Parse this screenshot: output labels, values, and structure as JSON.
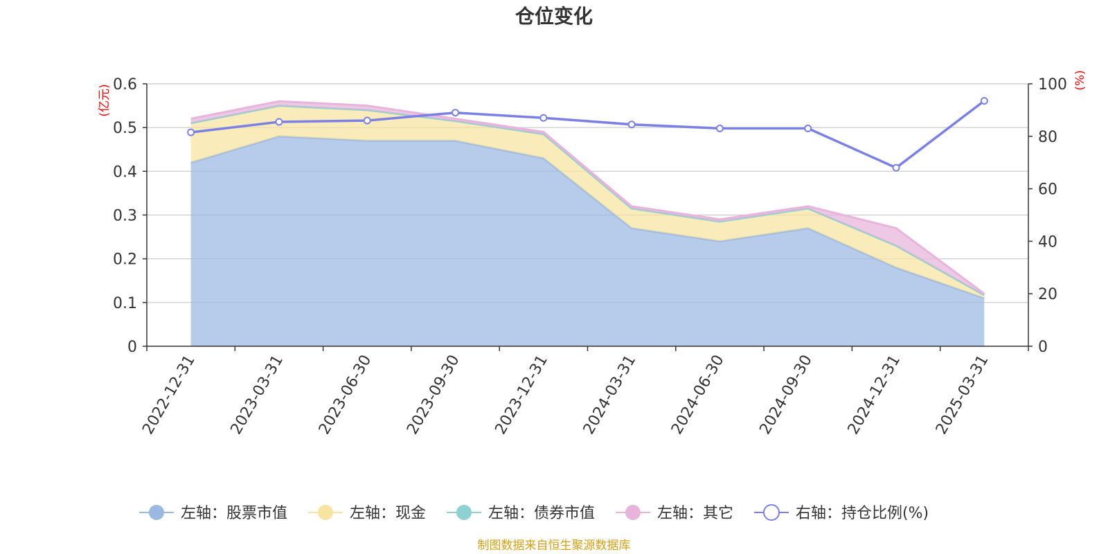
{
  "chart_data": {
    "type": "area",
    "title": "仓位变化",
    "left_unit": "(亿元)",
    "right_unit": "(%)",
    "categories": [
      "2022-12-31",
      "2023-03-31",
      "2023-06-30",
      "2023-09-30",
      "2023-12-31",
      "2024-03-31",
      "2024-06-30",
      "2024-09-30",
      "2024-12-31",
      "2025-03-31"
    ],
    "left_axis": {
      "min": 0,
      "max": 0.6,
      "ticks": [
        "0",
        "0.1",
        "0.2",
        "0.3",
        "0.4",
        "0.5",
        "0.6"
      ]
    },
    "right_axis": {
      "min": 0,
      "max": 100,
      "ticks": [
        "0",
        "20",
        "40",
        "60",
        "80",
        "100"
      ]
    },
    "grid": true,
    "stacked": true,
    "series": [
      {
        "name": "左轴：股票市值",
        "axis": "left",
        "color": "#9bb8e2",
        "values": [
          0.42,
          0.48,
          0.47,
          0.47,
          0.43,
          0.27,
          0.24,
          0.27,
          0.18,
          0.11
        ]
      },
      {
        "name": "左轴：现金",
        "axis": "left",
        "color": "#f7e4a0",
        "values": [
          0.09,
          0.07,
          0.07,
          0.045,
          0.055,
          0.045,
          0.045,
          0.045,
          0.05,
          0.007
        ]
      },
      {
        "name": "左轴：债券市值",
        "axis": "left",
        "color": "#8fd1d1",
        "values": [
          0,
          0,
          0,
          0,
          0,
          0,
          0,
          0,
          0,
          0
        ]
      },
      {
        "name": "左轴：其它",
        "axis": "left",
        "color": "#e8b4dc",
        "values": [
          0.01,
          0.01,
          0.01,
          0.005,
          0.005,
          0.005,
          0.005,
          0.005,
          0.04,
          0.003
        ]
      },
      {
        "name": "右轴：持仓比例(%)",
        "axis": "right",
        "color": "#7b7fe8",
        "values": [
          81.5,
          85.5,
          86,
          89,
          87,
          84.5,
          83,
          83,
          68,
          93.5
        ]
      }
    ],
    "legend_position": "bottom",
    "source_note": "制图数据来自恒生聚源数据库"
  }
}
